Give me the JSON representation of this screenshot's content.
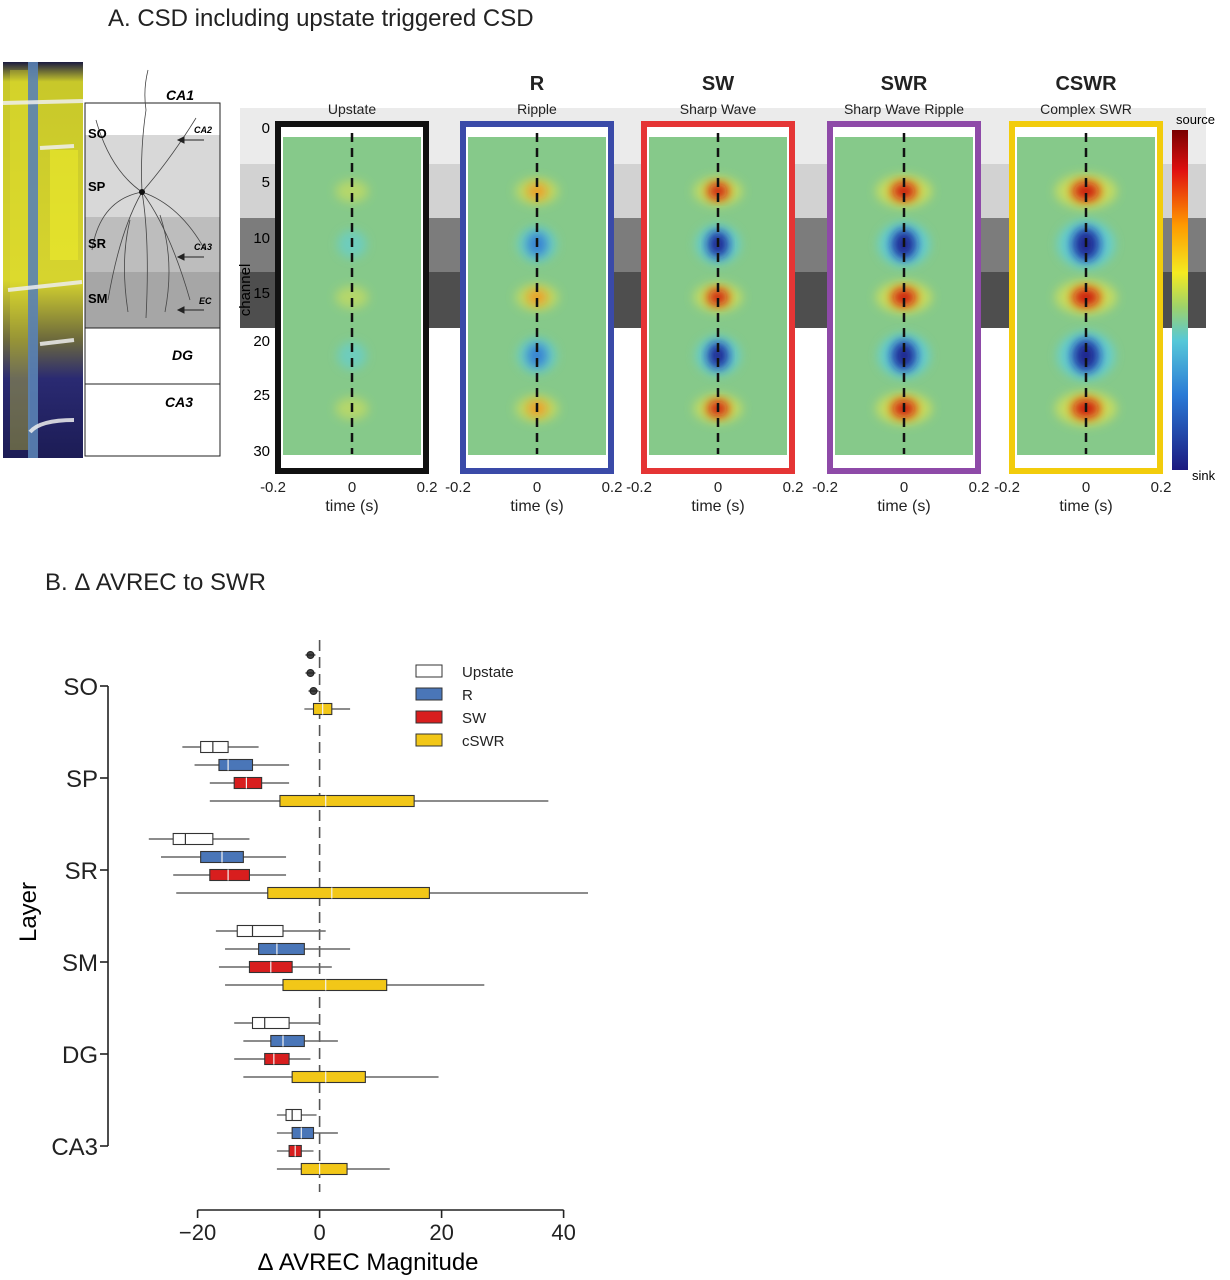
{
  "panel_a": {
    "title": "A. CSD including upstate triggered CSD",
    "layers": [
      "SO",
      "SP",
      "SR",
      "SM",
      "DG",
      "CA3"
    ],
    "region_label": "CA1",
    "inputs": [
      "CA2",
      "CA3",
      "EC"
    ],
    "channel_ylabel": "channel",
    "channel_ticks": [
      "0",
      "5",
      "10",
      "15",
      "20",
      "25",
      "30"
    ],
    "time_ticks": [
      "-0.2",
      "0",
      "0.2"
    ],
    "time_label": "time (s)",
    "colorbar": {
      "top": "source",
      "bottom": "sink"
    },
    "panels": [
      {
        "abbr": "",
        "name": "Upstate",
        "frame": "#111111",
        "strength": 0.18
      },
      {
        "abbr": "R",
        "name": "Ripple",
        "frame": "#3a4aa8",
        "strength": 0.55
      },
      {
        "abbr": "SW",
        "name": "Sharp Wave",
        "frame": "#e53535",
        "strength": 0.75
      },
      {
        "abbr": "SWR",
        "name": "Sharp Wave Ripple",
        "frame": "#8e4aa8",
        "strength": 1.0
      },
      {
        "abbr": "CSWR",
        "name": "Complex SWR",
        "frame": "#f2cc0c",
        "strength": 1.2
      }
    ]
  },
  "panel_b": {
    "title": "B. Δ AVREC to SWR",
    "chart_data": {
      "type": "box",
      "orientation": "horizontal",
      "ylabel": "Layer",
      "xlabel": "Δ  AVREC Magnitude",
      "categories": [
        "SO",
        "SP",
        "SR",
        "SM",
        "DG",
        "CA3"
      ],
      "xlim": [
        -26,
        44
      ],
      "xticks": [
        "−20",
        "0",
        "20",
        "40"
      ],
      "xtick_values": [
        -20,
        0,
        20,
        40
      ],
      "legend_position": "top-right",
      "series": [
        {
          "name": "Upstate",
          "color": "#ffffff",
          "boxes": [
            {
              "whislo": -1.5,
              "q1": -1.5,
              "med": -1.5,
              "q3": -1.5,
              "whishi": -1.5
            },
            {
              "whislo": -22.5,
              "q1": -19.5,
              "med": -17.5,
              "q3": -15,
              "whishi": -10
            },
            {
              "whislo": -28,
              "q1": -24,
              "med": -22,
              "q3": -17.5,
              "whishi": -11.5
            },
            {
              "whislo": -17,
              "q1": -13.5,
              "med": -11,
              "q3": -6,
              "whishi": 1
            },
            {
              "whislo": -14,
              "q1": -11,
              "med": -9,
              "q3": -5,
              "whishi": 0
            },
            {
              "whislo": -7,
              "q1": -5.5,
              "med": -4.5,
              "q3": -3,
              "whishi": -0.5
            }
          ]
        },
        {
          "name": "R",
          "color": "#4a76b8",
          "boxes": [
            {
              "whislo": -1.5,
              "q1": -1.5,
              "med": -1.5,
              "q3": -1.5,
              "whishi": -1.5
            },
            {
              "whislo": -20.5,
              "q1": -16.5,
              "med": -15,
              "q3": -11,
              "whishi": -5
            },
            {
              "whislo": -26,
              "q1": -19.5,
              "med": -16,
              "q3": -12.5,
              "whishi": -5.5
            },
            {
              "whislo": -15.5,
              "q1": -10,
              "med": -7,
              "q3": -2.5,
              "whishi": 5
            },
            {
              "whislo": -12.5,
              "q1": -8,
              "med": -6,
              "q3": -2.5,
              "whishi": 3
            },
            {
              "whislo": -7,
              "q1": -4.5,
              "med": -3,
              "q3": -1,
              "whishi": 3
            }
          ]
        },
        {
          "name": "SW",
          "color": "#d81e1e",
          "boxes": [
            {
              "whislo": -1,
              "q1": -1,
              "med": -1,
              "q3": -1,
              "whishi": -1
            },
            {
              "whislo": -18,
              "q1": -14,
              "med": -12,
              "q3": -9.5,
              "whishi": -5
            },
            {
              "whislo": -24,
              "q1": -18,
              "med": -15,
              "q3": -11.5,
              "whishi": -5.5
            },
            {
              "whislo": -16.5,
              "q1": -11.5,
              "med": -8,
              "q3": -4.5,
              "whishi": 2
            },
            {
              "whislo": -14,
              "q1": -9,
              "med": -7.5,
              "q3": -5,
              "whishi": -1.5
            },
            {
              "whislo": -7,
              "q1": -5,
              "med": -4,
              "q3": -3,
              "whishi": -1
            }
          ]
        },
        {
          "name": "cSWR",
          "color": "#f2c718",
          "boxes": [
            {
              "whislo": -2.5,
              "q1": -1,
              "med": 0.5,
              "q3": 2,
              "whishi": 5
            },
            {
              "whislo": -18,
              "q1": -6.5,
              "med": 1,
              "q3": 15.5,
              "whishi": 37.5
            },
            {
              "whislo": -23.5,
              "q1": -8.5,
              "med": 2,
              "q3": 18,
              "whishi": 44
            },
            {
              "whislo": -15.5,
              "q1": -6,
              "med": 1,
              "q3": 11,
              "whishi": 27
            },
            {
              "whislo": -12.5,
              "q1": -4.5,
              "med": 1,
              "q3": 7.5,
              "whishi": 19.5
            },
            {
              "whislo": -7,
              "q1": -3,
              "med": 0,
              "q3": 4.5,
              "whishi": 11.5
            }
          ]
        }
      ]
    }
  }
}
